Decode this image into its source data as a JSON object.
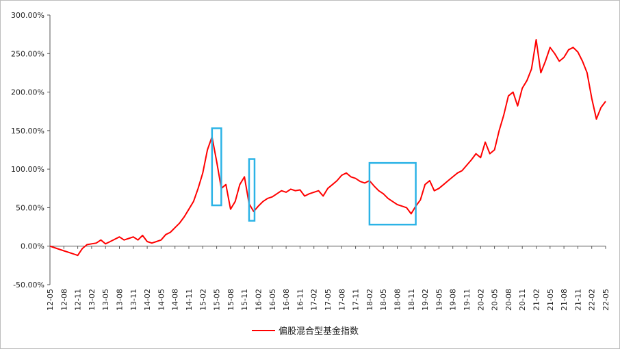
{
  "chart_data": {
    "type": "line",
    "y_ticks": [
      "300.00%",
      "250.00%",
      "200.00%",
      "150.00%",
      "100.00%",
      "50.00%",
      "0.00%",
      "-50.00%"
    ],
    "y_values": [
      300,
      250,
      200,
      150,
      100,
      50,
      0,
      -50
    ],
    "ylim": [
      -50,
      300
    ],
    "x_ticks": [
      "12-05",
      "12-08",
      "12-11",
      "13-02",
      "13-05",
      "13-08",
      "13-11",
      "14-02",
      "14-05",
      "14-08",
      "14-11",
      "15-02",
      "15-05",
      "15-08",
      "15-11",
      "16-02",
      "16-05",
      "16-08",
      "16-11",
      "17-02",
      "17-05",
      "17-08",
      "17-11",
      "18-02",
      "18-05",
      "18-08",
      "18-11",
      "19-02",
      "19-05",
      "19-08",
      "19-11",
      "20-02",
      "20-05",
      "20-08",
      "20-11",
      "21-02",
      "21-05",
      "21-08",
      "21-11",
      "22-02",
      "22-05"
    ],
    "series": [
      {
        "name": "偏股混合型基金指数",
        "color": "#ff0000",
        "x": [
          "12-05",
          "12-06",
          "12-08",
          "12-09",
          "12-11",
          "12-12",
          "13-01",
          "13-02",
          "13-03",
          "13-04",
          "13-05",
          "13-06",
          "13-07",
          "13-08",
          "13-09",
          "13-10",
          "13-11",
          "13-12",
          "14-01",
          "14-02",
          "14-03",
          "14-04",
          "14-05",
          "14-06",
          "14-07",
          "14-08",
          "14-09",
          "14-10",
          "14-11",
          "14-12",
          "15-01",
          "15-02",
          "15-03",
          "15-04",
          "15-05",
          "15-06",
          "15-07",
          "15-08",
          "15-09",
          "15-10",
          "15-11",
          "15-12",
          "16-01",
          "16-02",
          "16-03",
          "16-04",
          "16-05",
          "16-06",
          "16-07",
          "16-08",
          "16-09",
          "16-10",
          "16-11",
          "16-12",
          "17-01",
          "17-02",
          "17-03",
          "17-04",
          "17-05",
          "17-06",
          "17-07",
          "17-08",
          "17-09",
          "17-10",
          "17-11",
          "17-12",
          "18-01",
          "18-02",
          "18-03",
          "18-04",
          "18-05",
          "18-06",
          "18-07",
          "18-08",
          "18-09",
          "18-10",
          "18-11",
          "18-12",
          "19-01",
          "19-02",
          "19-03",
          "19-04",
          "19-05",
          "19-06",
          "19-07",
          "19-08",
          "19-09",
          "19-10",
          "19-11",
          "19-12",
          "20-01",
          "20-02",
          "20-03",
          "20-04",
          "20-05",
          "20-06",
          "20-07",
          "20-08",
          "20-09",
          "20-10",
          "20-11",
          "20-12",
          "21-01",
          "21-02",
          "21-03",
          "21-04",
          "21-05",
          "21-06",
          "21-07",
          "21-08",
          "21-09",
          "21-10",
          "21-11",
          "21-12",
          "22-01",
          "22-02",
          "22-03",
          "22-04",
          "22-05"
        ],
        "values": [
          0,
          -2,
          -6,
          -8,
          -12,
          -3,
          2,
          3,
          4,
          8,
          3,
          6,
          9,
          12,
          8,
          10,
          12,
          8,
          14,
          6,
          4,
          6,
          8,
          15,
          18,
          24,
          30,
          38,
          48,
          58,
          75,
          95,
          125,
          142,
          110,
          75,
          80,
          48,
          58,
          80,
          90,
          55,
          45,
          52,
          58,
          62,
          64,
          68,
          72,
          70,
          74,
          72,
          73,
          65,
          68,
          70,
          72,
          65,
          75,
          80,
          85,
          92,
          95,
          90,
          88,
          84,
          82,
          85,
          78,
          72,
          68,
          62,
          58,
          54,
          52,
          50,
          42,
          52,
          60,
          80,
          85,
          72,
          75,
          80,
          85,
          90,
          95,
          98,
          105,
          112,
          120,
          115,
          135,
          120,
          125,
          150,
          170,
          195,
          200,
          182,
          205,
          215,
          230,
          268,
          225,
          240,
          258,
          250,
          240,
          245,
          255,
          258,
          252,
          240,
          225,
          192,
          165,
          180,
          188
        ]
      }
    ],
    "highlights": [
      {
        "x0": "15-04",
        "x1": "15-06",
        "y0": 53,
        "y1": 153,
        "color": "#2bb3e6"
      },
      {
        "x0": "15-12",
        "x1": "16-01",
        "y0": 33,
        "y1": 113,
        "color": "#2bb3e6"
      },
      {
        "x0": "18-02",
        "x1": "18-12",
        "y0": 28,
        "y1": 108,
        "color": "#2bb3e6"
      }
    ],
    "grid": false,
    "legend_position": "bottom"
  }
}
